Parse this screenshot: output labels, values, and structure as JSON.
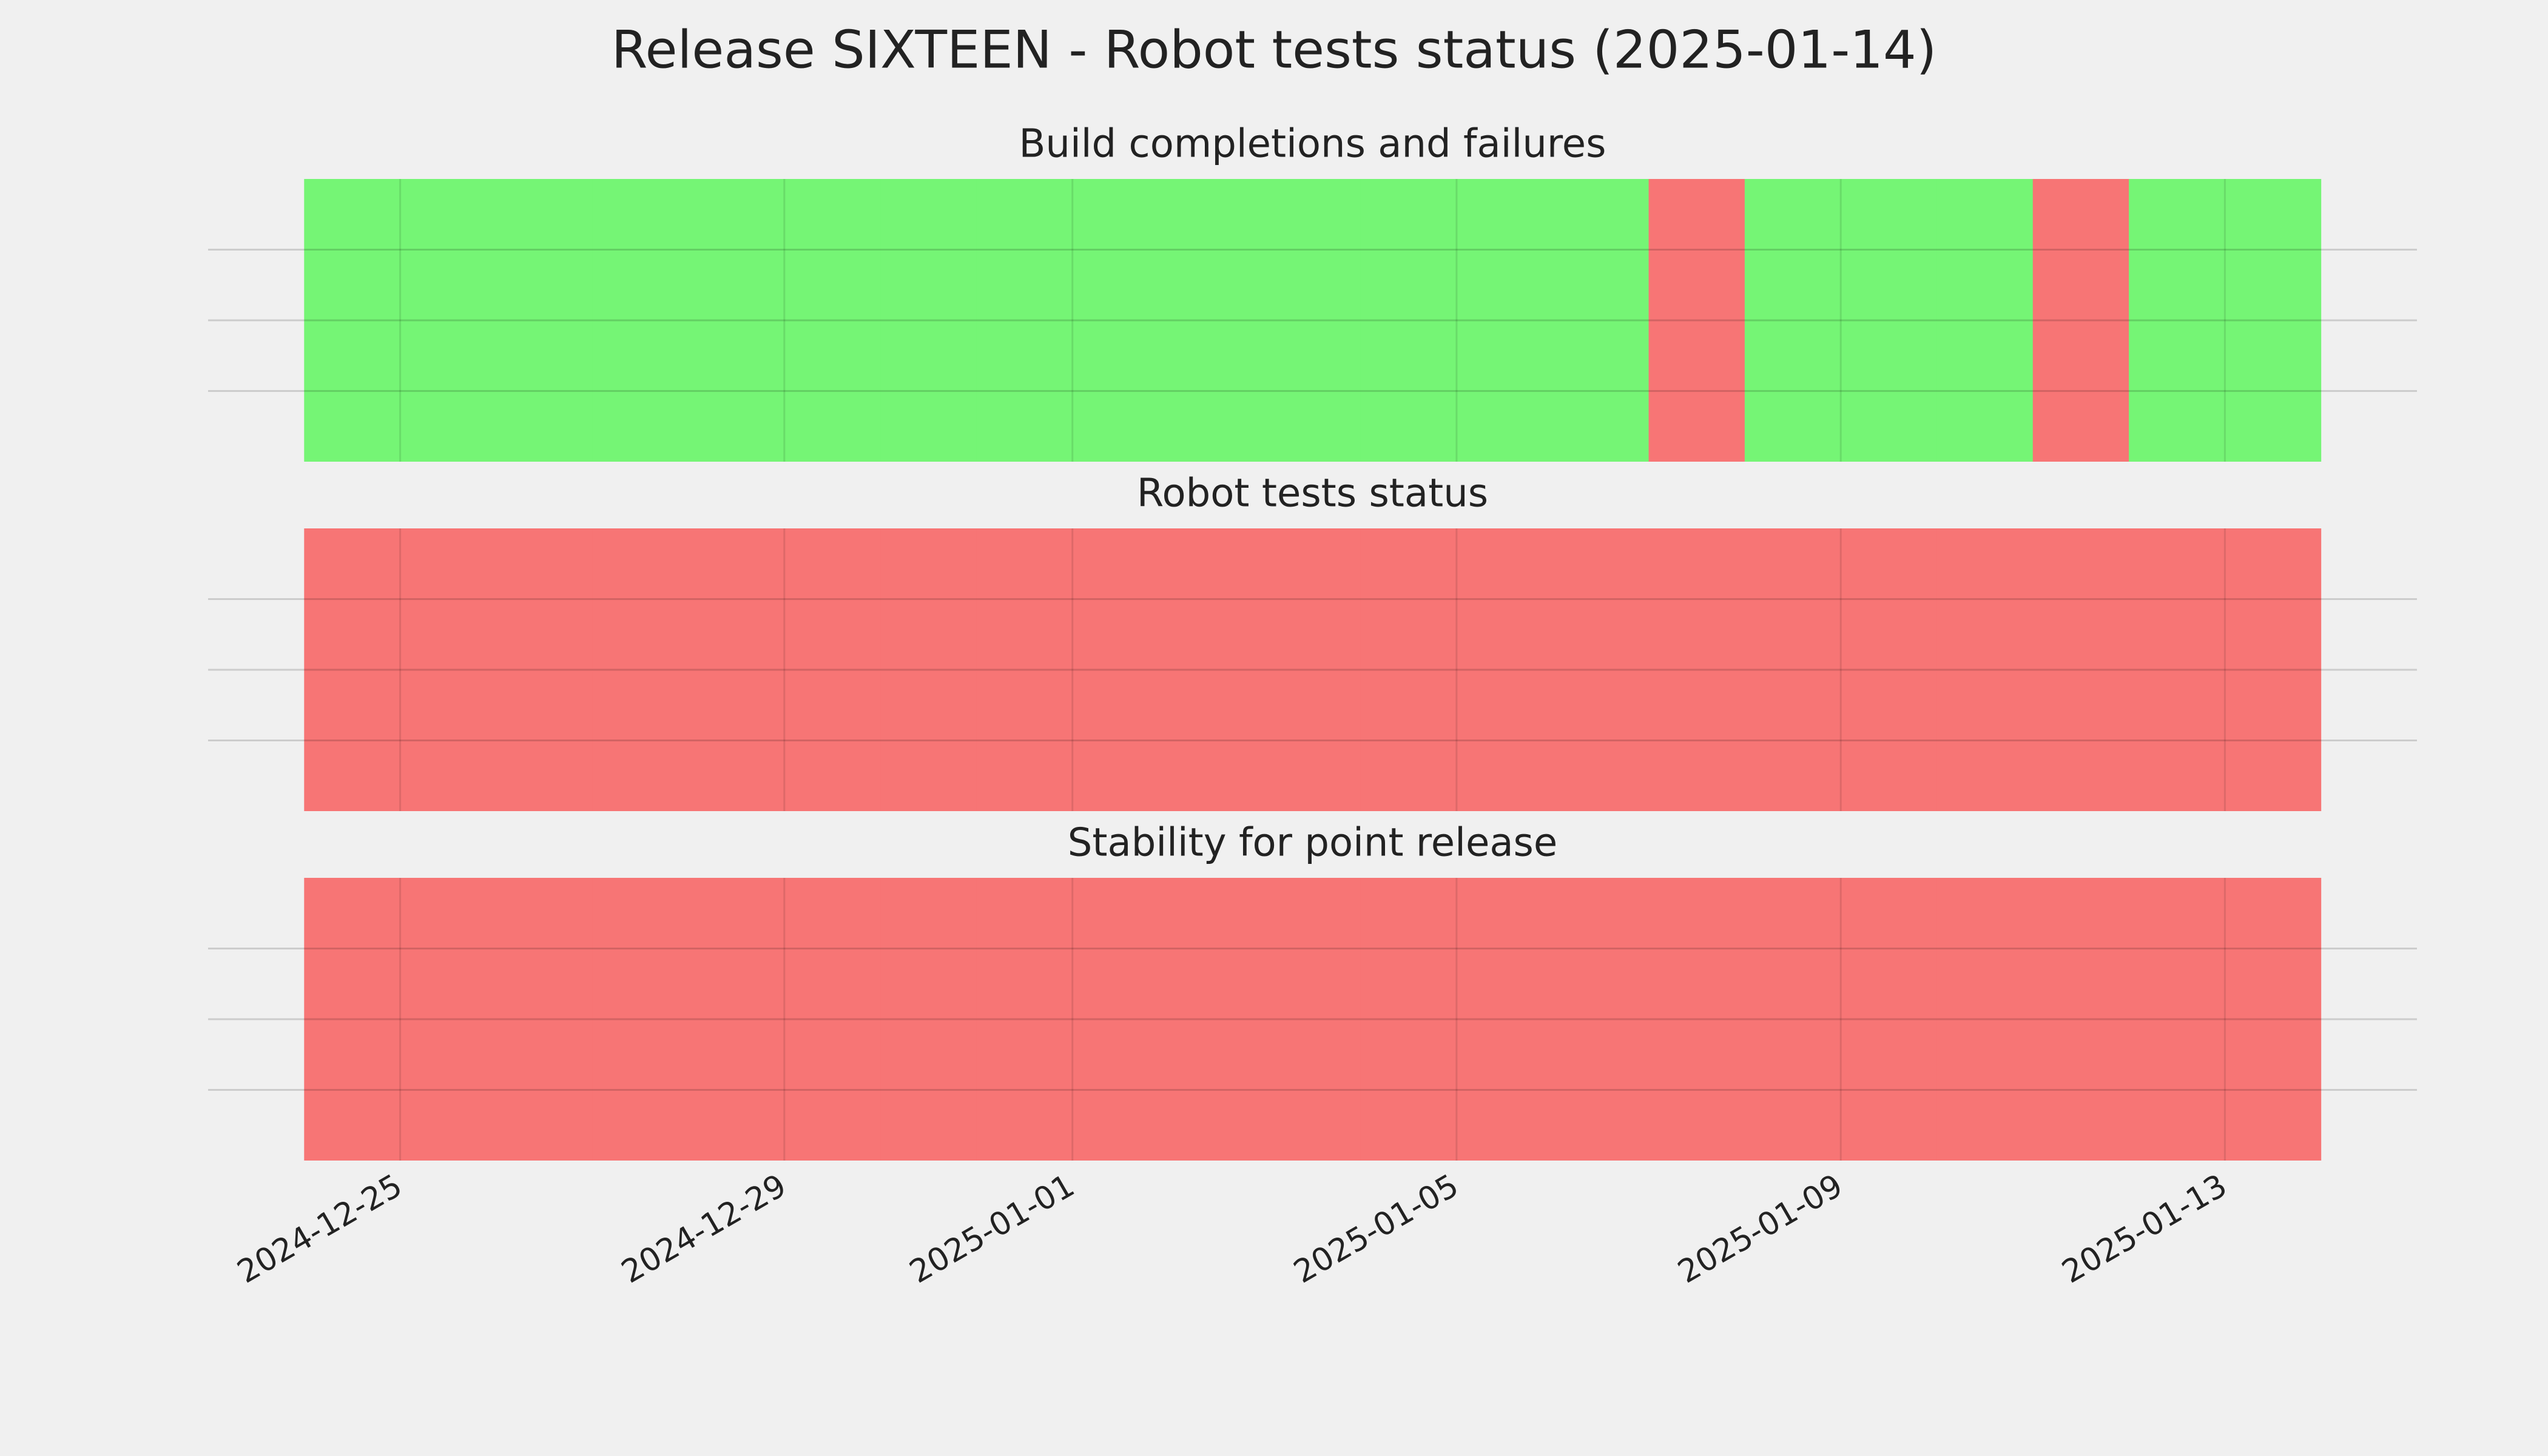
{
  "title": "Release SIXTEEN - Robot tests status (2025-01-14)",
  "chart_data": [
    {
      "type": "status",
      "title": "Build completions and failures",
      "x": [
        "2024-12-24",
        "2024-12-25",
        "2024-12-26",
        "2024-12-27",
        "2024-12-28",
        "2024-12-29",
        "2024-12-30",
        "2024-12-31",
        "2025-01-01",
        "2025-01-02",
        "2025-01-03",
        "2025-01-04",
        "2025-01-05",
        "2025-01-06",
        "2025-01-07",
        "2025-01-08",
        "2025-01-09",
        "2025-01-10",
        "2025-01-11",
        "2025-01-12",
        "2025-01-13"
      ],
      "values": [
        1,
        1,
        1,
        1,
        1,
        1,
        1,
        1,
        1,
        1,
        1,
        1,
        1,
        1,
        0,
        1,
        1,
        1,
        0,
        1,
        1
      ],
      "pass_color": "#75f575",
      "fail_color": "#f77575",
      "xlim": [
        "2024-12-23",
        "2025-01-15"
      ],
      "ylim": [
        0,
        1
      ],
      "xticks": [
        "2024-12-25",
        "2024-12-29",
        "2025-01-01",
        "2025-01-05",
        "2025-01-09",
        "2025-01-13"
      ],
      "yticks": [
        0.25,
        0.5,
        0.75
      ],
      "grid": true
    },
    {
      "type": "status",
      "title": "Robot tests status",
      "x": [
        "2024-12-24",
        "2024-12-25",
        "2024-12-26",
        "2024-12-27",
        "2024-12-28",
        "2024-12-29",
        "2024-12-30",
        "2024-12-31",
        "2025-01-01",
        "2025-01-02",
        "2025-01-03",
        "2025-01-04",
        "2025-01-05",
        "2025-01-06",
        "2025-01-07",
        "2025-01-08",
        "2025-01-09",
        "2025-01-10",
        "2025-01-11",
        "2025-01-12",
        "2025-01-13"
      ],
      "values": [
        0,
        0,
        0,
        0,
        0,
        0,
        0,
        0,
        0,
        0,
        0,
        0,
        0,
        0,
        0,
        0,
        0,
        0,
        0,
        0,
        0
      ],
      "pass_color": "#75f575",
      "fail_color": "#f77575",
      "xlim": [
        "2024-12-23",
        "2025-01-15"
      ],
      "ylim": [
        0,
        1
      ],
      "xticks": [
        "2024-12-25",
        "2024-12-29",
        "2025-01-01",
        "2025-01-05",
        "2025-01-09",
        "2025-01-13"
      ],
      "yticks": [
        0.25,
        0.5,
        0.75
      ],
      "grid": true
    },
    {
      "type": "status",
      "title": "Stability for point release",
      "x": [
        "2024-12-24",
        "2024-12-25",
        "2024-12-26",
        "2024-12-27",
        "2024-12-28",
        "2024-12-29",
        "2024-12-30",
        "2024-12-31",
        "2025-01-01",
        "2025-01-02",
        "2025-01-03",
        "2025-01-04",
        "2025-01-05",
        "2025-01-06",
        "2025-01-07",
        "2025-01-08",
        "2025-01-09",
        "2025-01-10",
        "2025-01-11",
        "2025-01-12",
        "2025-01-13"
      ],
      "values": [
        0,
        0,
        0,
        0,
        0,
        0,
        0,
        0,
        0,
        0,
        0,
        0,
        0,
        0,
        0,
        0,
        0,
        0,
        0,
        0,
        0
      ],
      "pass_color": "#75f575",
      "fail_color": "#f77575",
      "xlim": [
        "2024-12-23",
        "2025-01-15"
      ],
      "ylim": [
        0,
        1
      ],
      "xticks": [
        "2024-12-25",
        "2024-12-29",
        "2025-01-01",
        "2025-01-05",
        "2025-01-09",
        "2025-01-13"
      ],
      "yticks": [
        0.25,
        0.5,
        0.75
      ],
      "grid": true
    }
  ]
}
